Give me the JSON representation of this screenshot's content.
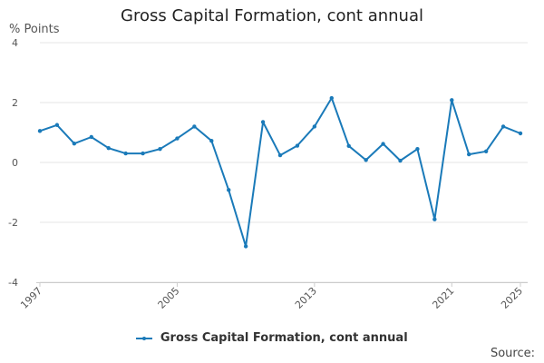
{
  "chart_data": {
    "type": "line",
    "title": "Gross Capital Formation, cont annual",
    "ylabel": "% Points",
    "xlabel": "",
    "ylim": [
      -4,
      4
    ],
    "yticks": [
      4,
      2,
      0,
      -2,
      -4
    ],
    "yticklabels": [
      "4",
      "2",
      "0",
      "-2",
      "-4"
    ],
    "xlim": [
      1997,
      2025
    ],
    "xticks": [
      1997,
      2005,
      2013,
      2021,
      2025
    ],
    "xticklabels": [
      "1997",
      "2005",
      "2013",
      "2021",
      "2025"
    ],
    "grid": true,
    "legend_position": "bottom",
    "series": [
      {
        "name": "Gross Capital Formation, cont annual",
        "color": "#1a7ab9",
        "x": [
          1997,
          1998,
          1999,
          2000,
          2001,
          2002,
          2003,
          2004,
          2005,
          2006,
          2007,
          2008,
          2009,
          2010,
          2011,
          2012,
          2013,
          2014,
          2015,
          2016,
          2017,
          2018,
          2019,
          2020,
          2021,
          2022,
          2023,
          2024,
          2025
        ],
        "values": [
          1.05,
          1.25,
          0.63,
          0.85,
          0.48,
          0.3,
          0.3,
          0.45,
          0.8,
          1.2,
          0.72,
          -0.92,
          -2.8,
          1.35,
          0.24,
          0.56,
          1.2,
          2.15,
          0.55,
          0.08,
          0.62,
          0.06,
          0.45,
          -1.9,
          2.08,
          0.27,
          0.37,
          1.2,
          0.97
        ]
      }
    ]
  },
  "source_label": "Source:"
}
